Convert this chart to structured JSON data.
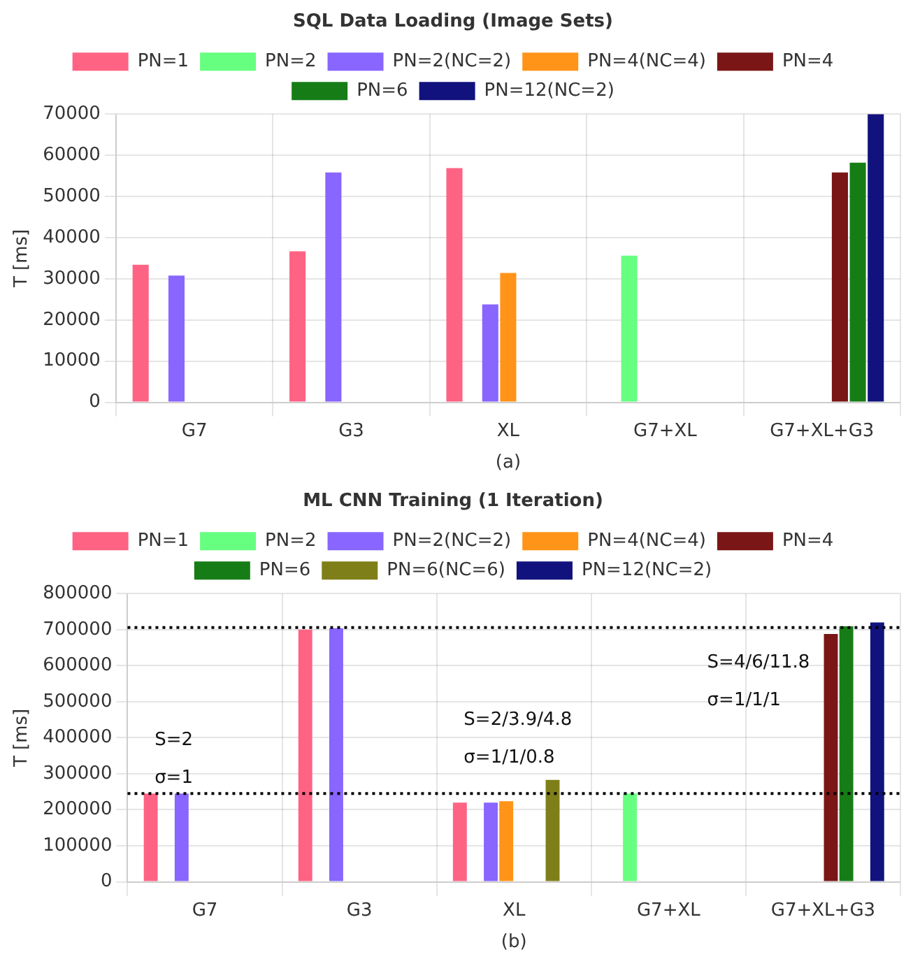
{
  "chart_data": [
    {
      "type": "bar",
      "title": "SQL Data Loading (Image Sets)",
      "xlabel": "(a)",
      "ylabel": "T [ms]",
      "categories": [
        "G7",
        "G3",
        "XL",
        "G7+XL",
        "G7+XL+G3"
      ],
      "series": [
        {
          "name": "PN=1",
          "color": "#ff6384",
          "values": [
            33400,
            36700,
            56900,
            null,
            null
          ]
        },
        {
          "name": "PN=2",
          "color": "#66ff80",
          "values": [
            null,
            null,
            null,
            35600,
            null
          ]
        },
        {
          "name": "PN=2(NC=2)",
          "color": "#8866ff",
          "values": [
            30800,
            55800,
            23800,
            null,
            null
          ]
        },
        {
          "name": "PN=4(NC=4)",
          "color": "#ff9419",
          "values": [
            null,
            null,
            31400,
            null,
            null
          ]
        },
        {
          "name": "PN=4",
          "color": "#7b1616",
          "values": [
            null,
            null,
            null,
            null,
            55800
          ]
        },
        {
          "name": "PN=6",
          "color": "#167d16",
          "values": [
            null,
            null,
            null,
            null,
            58200
          ]
        },
        {
          "name": "PN=12(NC=2)",
          "color": "#12127e",
          "values": [
            null,
            null,
            null,
            null,
            70000
          ]
        }
      ],
      "ylim": [
        0,
        70000
      ],
      "yticks": [
        0,
        10000,
        20000,
        30000,
        40000,
        50000,
        60000,
        70000
      ],
      "grid": true,
      "legend": "top"
    },
    {
      "type": "bar",
      "title": "ML CNN Training (1 Iteration)",
      "xlabel": "(b)",
      "ylabel": "T [ms]",
      "categories": [
        "G7",
        "G3",
        "XL",
        "G7+XL",
        "G7+XL+G3"
      ],
      "series": [
        {
          "name": "PN=1",
          "color": "#ff6384",
          "values": [
            245000,
            700000,
            220000,
            null,
            null
          ]
        },
        {
          "name": "PN=2",
          "color": "#66ff80",
          "values": [
            null,
            null,
            null,
            245000,
            null
          ]
        },
        {
          "name": "PN=2(NC=2)",
          "color": "#8866ff",
          "values": [
            245000,
            704000,
            220000,
            null,
            null
          ]
        },
        {
          "name": "PN=4(NC=4)",
          "color": "#ff9419",
          "values": [
            null,
            null,
            224000,
            null,
            null
          ]
        },
        {
          "name": "PN=4",
          "color": "#7b1616",
          "values": [
            null,
            null,
            null,
            null,
            688000
          ]
        },
        {
          "name": "PN=6",
          "color": "#167d16",
          "values": [
            null,
            null,
            null,
            null,
            709000
          ]
        },
        {
          "name": "PN=6(NC=6)",
          "color": "#7f7f19",
          "values": [
            null,
            null,
            283000,
            null,
            null
          ]
        },
        {
          "name": "PN=12(NC=2)",
          "color": "#12127e",
          "values": [
            null,
            null,
            null,
            null,
            720000
          ]
        }
      ],
      "ylim": [
        0,
        800000
      ],
      "yticks": [
        0,
        100000,
        200000,
        300000,
        400000,
        500000,
        600000,
        700000,
        800000
      ],
      "grid": true,
      "legend": "top",
      "ref_lines": [
        {
          "axis": "y",
          "value": 245000,
          "color": "#000000",
          "line_style": "dotted"
        },
        {
          "axis": "y",
          "value": 706000,
          "color": "#000000",
          "line_style": "dotted"
        }
      ],
      "annotations": [
        "S=2",
        "σ=1",
        "S=2/3.9/4.8",
        "σ=1/1/0.8",
        "S=4/6/11.8",
        "σ=1/1/1"
      ]
    }
  ]
}
